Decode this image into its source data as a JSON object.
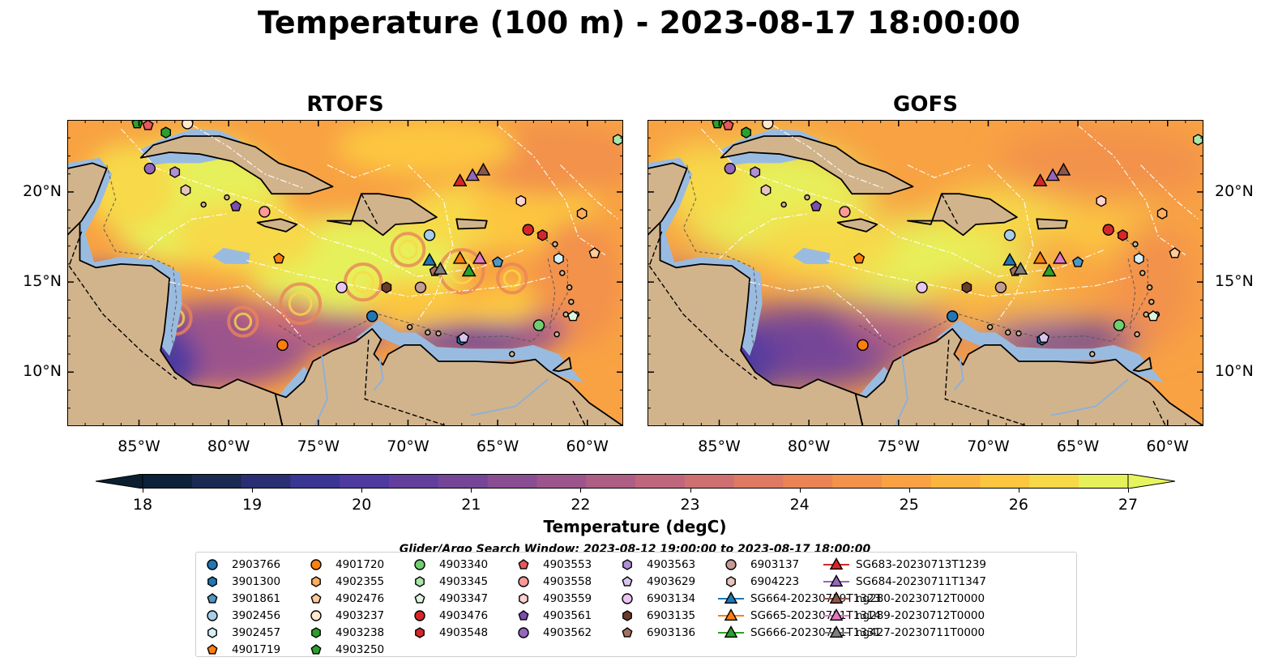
{
  "title": "Temperature (100 m) - 2023-08-17 18:00:00",
  "panels": [
    {
      "name": "RTOFS",
      "style": "rtofs"
    },
    {
      "name": "GOFS",
      "style": "gofs"
    }
  ],
  "lat_ticks": [
    {
      "lat": 20,
      "label": "20°N"
    },
    {
      "lat": 15,
      "label": "15°N"
    },
    {
      "lat": 10,
      "label": "10°N"
    }
  ],
  "lon_ticks": [
    {
      "lon": -85,
      "label": "85°W"
    },
    {
      "lon": -80,
      "label": "80°W"
    },
    {
      "lon": -75,
      "label": "75°W"
    },
    {
      "lon": -70,
      "label": "70°W"
    },
    {
      "lon": -65,
      "label": "65°W"
    },
    {
      "lon": -60,
      "label": "60°W"
    }
  ],
  "map_extent": {
    "lon": [
      -89,
      -58
    ],
    "lat": [
      7,
      24
    ]
  },
  "colorbar": {
    "label": "Temperature (degC)",
    "min": 18,
    "max": 27,
    "extend": "both",
    "ticks": [
      "18",
      "19",
      "20",
      "21",
      "22",
      "23",
      "24",
      "25",
      "26",
      "27"
    ],
    "colors": [
      "#0b2238",
      "#1a2a52",
      "#2a2f73",
      "#3a3694",
      "#4e3aa0",
      "#623f9d",
      "#754598",
      "#894d92",
      "#9c558c",
      "#ae5e85",
      "#c0667c",
      "#d06f71",
      "#de7964",
      "#ea8457",
      "#f3924b",
      "#f8a243",
      "#fbb43f",
      "#fcc63f",
      "#f7d948",
      "#e6f05a"
    ],
    "end_low": "#0b1f30",
    "end_high": "#e6f55e"
  },
  "search_window": "Glider/Argo Search Window: 2023-08-12 19:00:00 to 2023-08-17 18:00:00",
  "colors": {
    "land": "#d2b48c",
    "shelf": "#9abbe0",
    "deep": "#0e2435"
  },
  "observations": [
    {
      "id": "2903766",
      "marker": "circle",
      "color": "#1f77b4",
      "lon": -72.0,
      "lat": 13.1
    },
    {
      "id": "3901300",
      "marker": "hexagon",
      "color": "#1f77b4",
      "lon": -67.0,
      "lat": 11.8
    },
    {
      "id": "3901861",
      "marker": "pentagon",
      "color": "#4f97c6",
      "lon": -65.0,
      "lat": 16.1
    },
    {
      "id": "3902456",
      "marker": "circle",
      "color": "#a6cee8",
      "lon": -68.8,
      "lat": 17.6
    },
    {
      "id": "3902457",
      "marker": "hexagon",
      "color": "#d6eef8",
      "lon": -61.6,
      "lat": 16.3
    },
    {
      "id": "4901719",
      "marker": "pentagon",
      "color": "#ff7f0e",
      "lon": -77.2,
      "lat": 16.3
    },
    {
      "id": "4901720",
      "marker": "circle",
      "color": "#ff7f0e",
      "lon": -77.0,
      "lat": 11.5
    },
    {
      "id": "4902355",
      "marker": "hexagon",
      "color": "#ffad60",
      "lon": -60.3,
      "lat": 18.8
    },
    {
      "id": "4902476",
      "marker": "pentagon",
      "color": "#ffcc99",
      "lon": -59.6,
      "lat": 16.6
    },
    {
      "id": "4903237",
      "marker": "circle",
      "color": "#ffe8d0",
      "lon": -82.3,
      "lat": 23.8
    },
    {
      "id": "4903238",
      "marker": "hexagon",
      "color": "#2ca02c",
      "lon": -83.5,
      "lat": 23.3
    },
    {
      "id": "4903250",
      "marker": "pentagon",
      "color": "#2ca02c",
      "lon": -85.1,
      "lat": 23.8
    },
    {
      "id": "4903340",
      "marker": "circle",
      "color": "#6fcf6f",
      "lon": -62.7,
      "lat": 12.6
    },
    {
      "id": "4903345",
      "marker": "hexagon",
      "color": "#a9e6a9",
      "lon": -58.3,
      "lat": 22.9
    },
    {
      "id": "4903347",
      "marker": "pentagon",
      "color": "#dcf5dc",
      "lon": -60.8,
      "lat": 13.1
    },
    {
      "id": "4903476",
      "marker": "circle",
      "color": "#d62728",
      "lon": -63.3,
      "lat": 17.9
    },
    {
      "id": "4903548",
      "marker": "hexagon",
      "color": "#d62728",
      "lon": -62.5,
      "lat": 17.6
    },
    {
      "id": "4903553",
      "marker": "pentagon",
      "color": "#e8575a",
      "lon": -84.5,
      "lat": 23.7
    },
    {
      "id": "4903558",
      "marker": "circle",
      "color": "#ff9896",
      "lon": -78.0,
      "lat": 18.9
    },
    {
      "id": "4903559",
      "marker": "hexagon",
      "color": "#ffd1d0",
      "lon": -63.7,
      "lat": 19.5
    },
    {
      "id": "4903561",
      "marker": "pentagon",
      "color": "#7b4fad",
      "lon": -79.6,
      "lat": 19.2
    },
    {
      "id": "4903562",
      "marker": "circle",
      "color": "#9467bd",
      "lon": -84.4,
      "lat": 21.3
    },
    {
      "id": "4903563",
      "marker": "hexagon",
      "color": "#b08fd4",
      "lon": -83.0,
      "lat": 21.1
    },
    {
      "id": "4903629",
      "marker": "pentagon",
      "color": "#d9c6ee",
      "lon": -66.9,
      "lat": 11.9
    },
    {
      "id": "6903134",
      "marker": "circle",
      "color": "#e9c4f0",
      "lon": -73.7,
      "lat": 14.7
    },
    {
      "id": "6903135",
      "marker": "hexagon",
      "color": "#6b3b2a",
      "lon": -71.2,
      "lat": 14.7
    },
    {
      "id": "6903136",
      "marker": "pentagon",
      "color": "#a57162",
      "lon": -68.5,
      "lat": 15.6
    },
    {
      "id": "6903137",
      "marker": "circle",
      "color": "#c49c94",
      "lon": -69.3,
      "lat": 14.7
    },
    {
      "id": "6904223",
      "marker": "hexagon",
      "color": "#e7c4bd",
      "lon": -82.4,
      "lat": 20.1
    },
    {
      "id": "SG664-20230719T1323",
      "marker": "triangle",
      "color": "#1f77b4",
      "lon": -68.8,
      "lat": 16.2
    },
    {
      "id": "SG665-20230711T1314",
      "marker": "triangle",
      "color": "#ff7f0e",
      "lon": -67.1,
      "lat": 16.3
    },
    {
      "id": "SG666-20230711T1331",
      "marker": "triangle",
      "color": "#2ca02c",
      "lon": -66.6,
      "lat": 15.6
    },
    {
      "id": "SG683-20230713T1239",
      "marker": "triangle",
      "color": "#d62728",
      "lon": -67.1,
      "lat": 20.6
    },
    {
      "id": "SG684-20230711T1347",
      "marker": "triangle",
      "color": "#9467bd",
      "lon": -66.4,
      "lat": 20.9
    },
    {
      "id": "ng280-20230712T0000",
      "marker": "triangle",
      "color": "#8c564b",
      "lon": -65.8,
      "lat": 21.2
    },
    {
      "id": "ng289-20230712T0000",
      "marker": "triangle",
      "color": "#e377c2",
      "lon": -66.0,
      "lat": 16.3
    },
    {
      "id": "ng427-20230711T0000",
      "marker": "triangle",
      "color": "#7f7f7f",
      "lon": -68.2,
      "lat": 15.7
    }
  ]
}
